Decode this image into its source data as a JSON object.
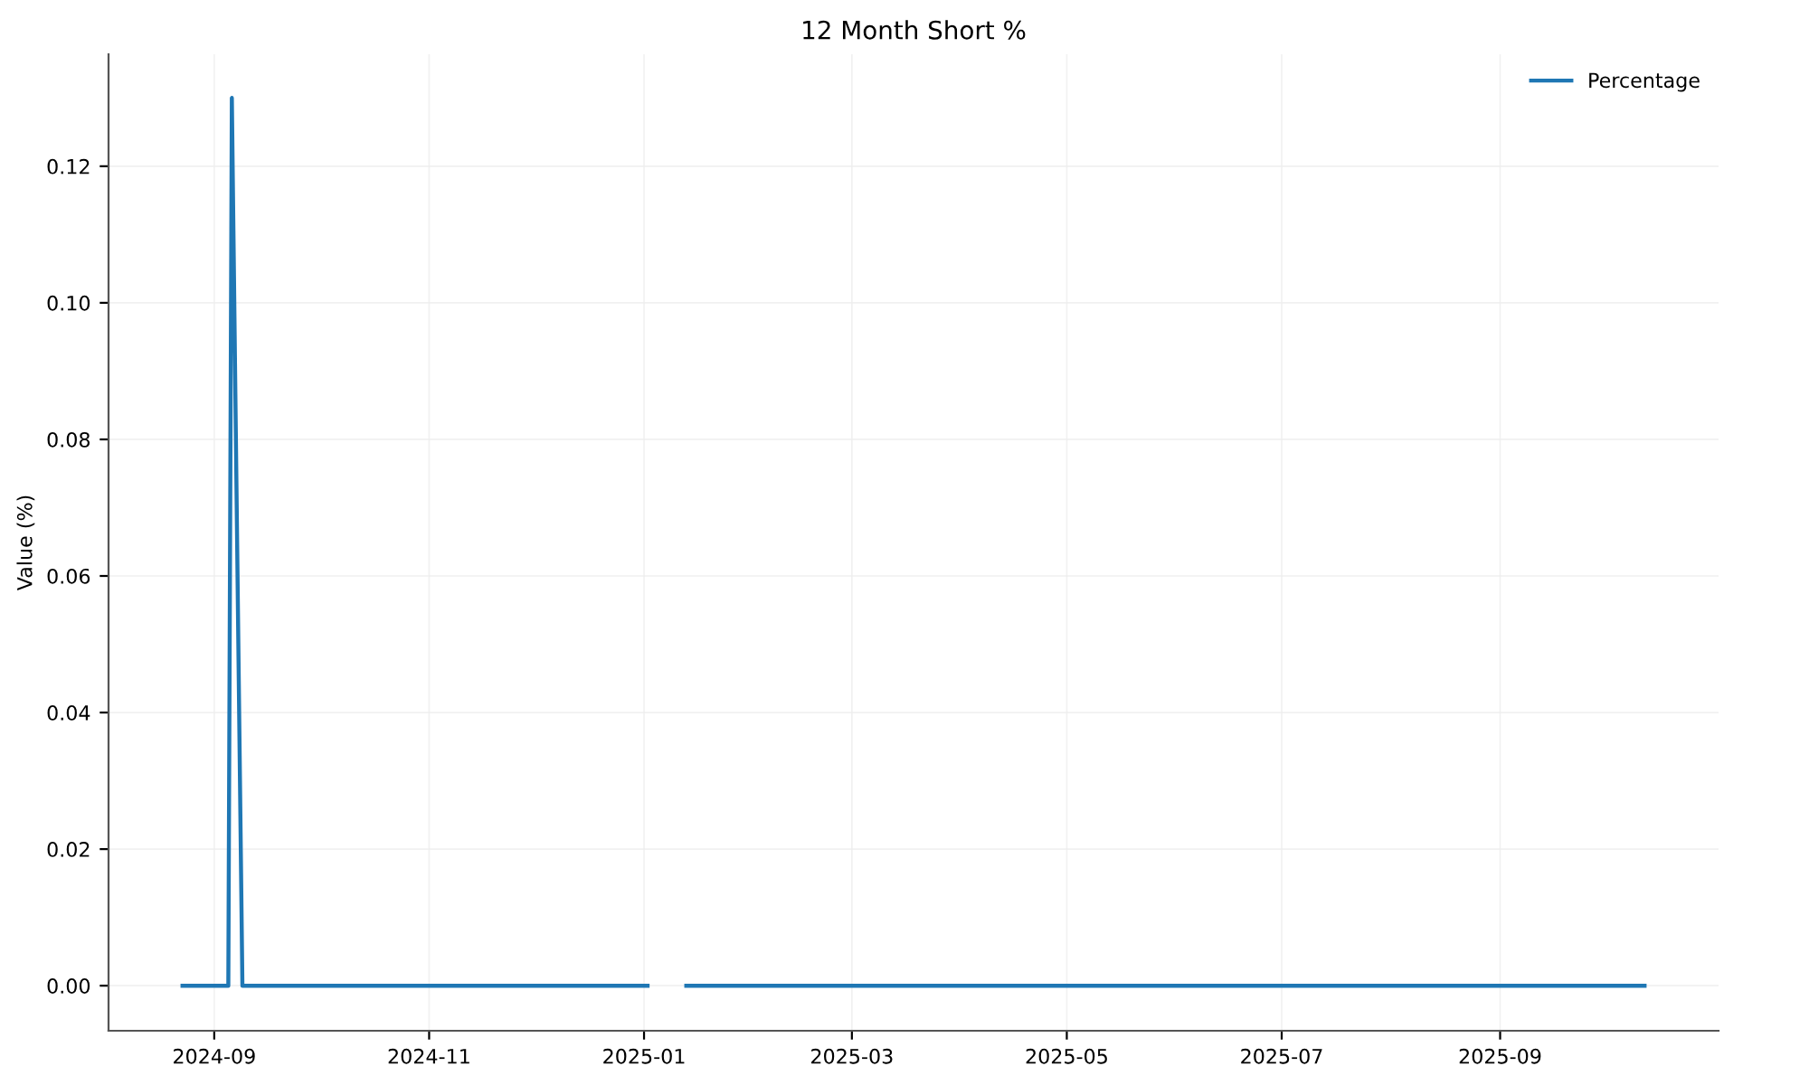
{
  "chart_data": {
    "type": "line",
    "title": "12 Month Short %",
    "ylabel": "Value (%)",
    "x": [
      "2024-08-23",
      "2024-09-05",
      "2024-09-06",
      "2024-09-09",
      "2025-01-02",
      "2025-01-07",
      "2025-01-13",
      "2025-10-12"
    ],
    "series": [
      {
        "name": "Percentage",
        "color": "#1f77b4",
        "values": [
          0,
          0,
          0.13,
          0,
          0,
          null,
          0,
          0
        ]
      }
    ],
    "xlim": [
      "2024-08-02",
      "2025-11-02"
    ],
    "xticks": [
      {
        "value": "2024-09-01",
        "label": "2024-09"
      },
      {
        "value": "2024-11-01",
        "label": "2024-11"
      },
      {
        "value": "2025-01-01",
        "label": "2025-01"
      },
      {
        "value": "2025-03-01",
        "label": "2025-03"
      },
      {
        "value": "2025-05-01",
        "label": "2025-05"
      },
      {
        "value": "2025-07-01",
        "label": "2025-07"
      },
      {
        "value": "2025-09-01",
        "label": "2025-09"
      }
    ],
    "ylim": [
      -0.0066,
      0.1364
    ],
    "yticks": [
      {
        "value": 0,
        "label": "0.00"
      },
      {
        "value": 0.02,
        "label": "0.02"
      },
      {
        "value": 0.04,
        "label": "0.04"
      },
      {
        "value": 0.06,
        "label": "0.06"
      },
      {
        "value": 0.08,
        "label": "0.08"
      },
      {
        "value": 0.1,
        "label": "0.10"
      },
      {
        "value": 0.12,
        "label": "0.12"
      }
    ],
    "grid": true,
    "legend": "top right",
    "marker": "none",
    "line_style": "solid"
  }
}
